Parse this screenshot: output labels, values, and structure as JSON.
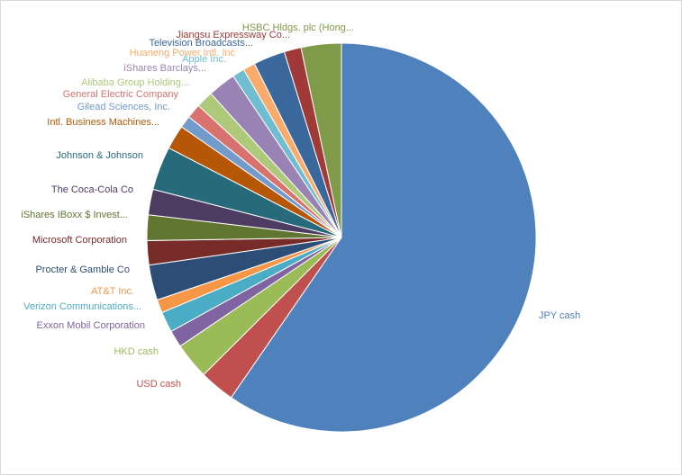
{
  "chart_data": {
    "type": "pie",
    "slices": [
      {
        "label": "JPY cash",
        "value": 59.0,
        "color": "#4f81bd"
      },
      {
        "label": "USD cash",
        "value": 2.9,
        "color": "#c0504d"
      },
      {
        "label": "HKD cash",
        "value": 3.0,
        "color": "#9bbb59"
      },
      {
        "label": "Exxon Mobil Corporation",
        "value": 1.4,
        "color": "#8064a2"
      },
      {
        "label": "Verizon Communications...",
        "value": 1.7,
        "color": "#4bacc6"
      },
      {
        "label": "AT&T Inc.",
        "value": 1.1,
        "color": "#f79646"
      },
      {
        "label": "Procter & Gamble Co",
        "value": 2.9,
        "color": "#2c4d75"
      },
      {
        "label": "Microsoft Corporation",
        "value": 2.0,
        "color": "#772c2a"
      },
      {
        "label": "iShares IBoxx $ Invest...",
        "value": 2.1,
        "color": "#5f7530"
      },
      {
        "label": "The Coca-Cola Co",
        "value": 2.1,
        "color": "#4d3b62"
      },
      {
        "label": "Johnson & Johnson",
        "value": 3.6,
        "color": "#276a7c"
      },
      {
        "label": "Intl. Business Machines...",
        "value": 2.0,
        "color": "#b65708"
      },
      {
        "label": "Gilead Sciences, Inc.",
        "value": 1.0,
        "color": "#729aca"
      },
      {
        "label": "General Electric Company",
        "value": 1.2,
        "color": "#d8726f"
      },
      {
        "label": "Alibaba Group Holding...",
        "value": 1.4,
        "color": "#afc97a"
      },
      {
        "label": "iShares Barclays...",
        "value": 2.3,
        "color": "#9983b5"
      },
      {
        "label": "Apple Inc.",
        "value": 1.0,
        "color": "#6fbdd1"
      },
      {
        "label": "Huaneng Power Intl. Inc",
        "value": 1.0,
        "color": "#f9ab6b"
      },
      {
        "label": "Television Broadcasts...",
        "value": 2.6,
        "color": "#3a679c"
      },
      {
        "label": "Jiangsu Expressway Co...",
        "value": 1.4,
        "color": "#9f3a38"
      },
      {
        "label": "HSBC Hldgs. plc (Hong...",
        "value": 3.3,
        "color": "#7f9a48"
      }
    ]
  }
}
